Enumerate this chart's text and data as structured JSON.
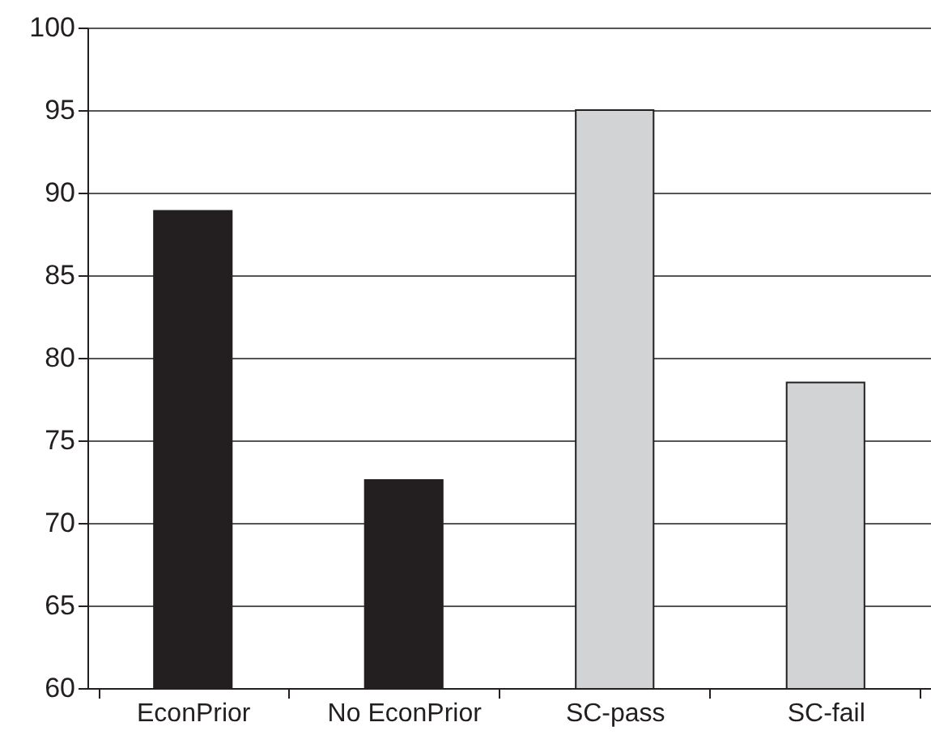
{
  "chart_data": {
    "type": "bar",
    "categories": [
      "EconPrior",
      "No EconPrior",
      "SC-pass",
      "SC-fail"
    ],
    "values": [
      88.9,
      72.6,
      95.0,
      78.5
    ],
    "colors": [
      "#231f20",
      "#231f20",
      "#d1d3d4",
      "#d1d3d4"
    ],
    "ylim": [
      60,
      100
    ],
    "yticks": [
      60,
      65,
      70,
      75,
      80,
      85,
      90,
      95,
      100
    ],
    "grid": "y"
  }
}
